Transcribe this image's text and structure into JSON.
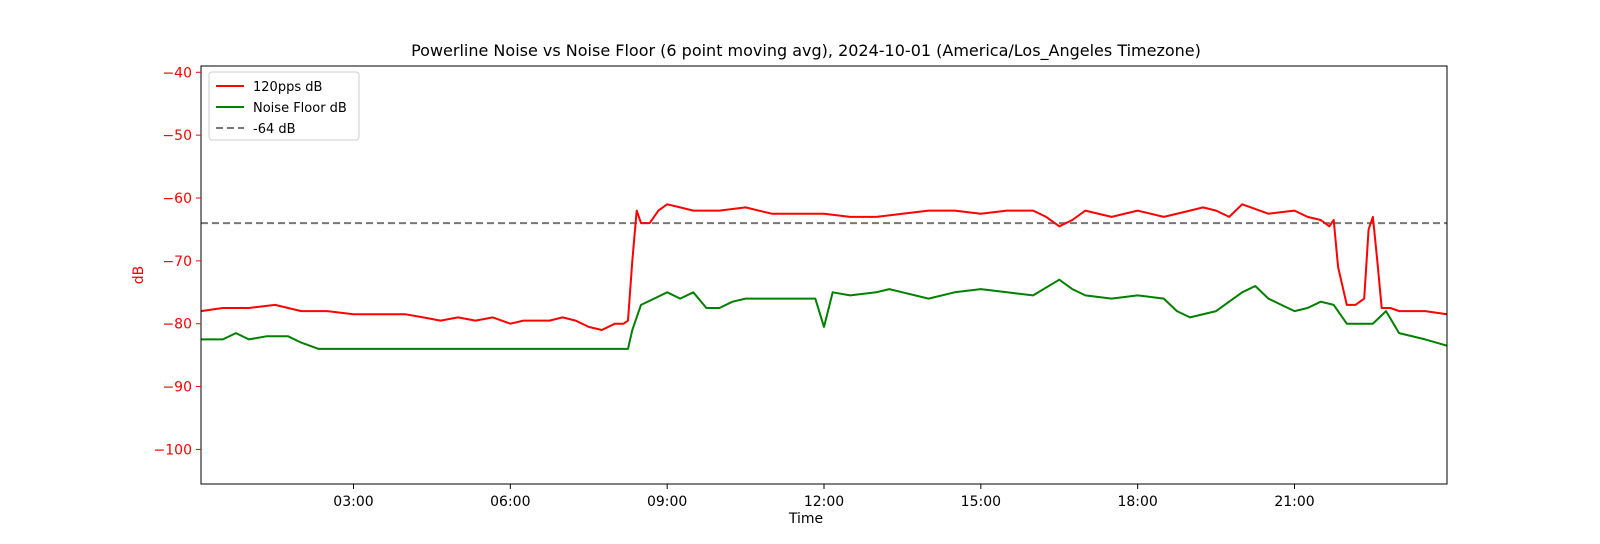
{
  "chart_data": {
    "type": "line",
    "title": "Powerline Noise vs Noise Floor (6 point moving avg), 2024-10-01 (America/Los_Angeles Timezone)",
    "xlabel": "Time",
    "ylabel": "dB",
    "xlim": [
      "00:05",
      "23:55"
    ],
    "ylim": [
      -105.5,
      -39
    ],
    "grid": false,
    "legend_position": "upper-left",
    "x_ticks": [
      "03:00",
      "06:00",
      "09:00",
      "12:00",
      "15:00",
      "18:00",
      "21:00"
    ],
    "y_ticks": [
      -40,
      -50,
      -60,
      -70,
      -80,
      -90,
      -100
    ],
    "reference_line": {
      "label": "-64 dB",
      "value": -64,
      "color": "#777777",
      "style": "dashed"
    },
    "series": [
      {
        "name": "120pps dB",
        "color": "#ff0000",
        "x": [
          "00:05",
          "00:30",
          "01:00",
          "01:30",
          "02:00",
          "02:30",
          "03:00",
          "03:30",
          "04:00",
          "04:20",
          "04:40",
          "05:00",
          "05:20",
          "05:40",
          "06:00",
          "06:15",
          "06:30",
          "06:45",
          "07:00",
          "07:15",
          "07:30",
          "07:45",
          "08:00",
          "08:10",
          "08:15",
          "08:20",
          "08:25",
          "08:30",
          "08:40",
          "08:50",
          "09:00",
          "09:15",
          "09:30",
          "10:00",
          "10:30",
          "11:00",
          "11:30",
          "12:00",
          "12:30",
          "13:00",
          "13:30",
          "14:00",
          "14:30",
          "15:00",
          "15:30",
          "16:00",
          "16:15",
          "16:30",
          "16:45",
          "17:00",
          "17:30",
          "18:00",
          "18:30",
          "19:00",
          "19:15",
          "19:30",
          "19:45",
          "20:00",
          "20:30",
          "21:00",
          "21:15",
          "21:30",
          "21:40",
          "21:45",
          "21:50",
          "22:00",
          "22:10",
          "22:20",
          "22:25",
          "22:30",
          "22:35",
          "22:40",
          "22:50",
          "23:00",
          "23:30",
          "23:55"
        ],
        "values": [
          -78,
          -77.5,
          -77.5,
          -77,
          -78,
          -78,
          -78.5,
          -78.5,
          -78.5,
          -79,
          -79.5,
          -79,
          -79.5,
          -79,
          -80,
          -79.5,
          -79.5,
          -79.5,
          -79,
          -79.5,
          -80.5,
          -81,
          -80,
          -80,
          -79.5,
          -70,
          -62,
          -64,
          -64,
          -62,
          -61,
          -61.5,
          -62,
          -62,
          -61.5,
          -62.5,
          -62.5,
          -62.5,
          -63,
          -63,
          -62.5,
          -62,
          -62,
          -62.5,
          -62,
          -62,
          -63,
          -64.5,
          -63.5,
          -62,
          -63,
          -62,
          -63,
          -62,
          -61.5,
          -62,
          -63,
          -61,
          -62.5,
          -62,
          -63,
          -63.5,
          -64.5,
          -63.5,
          -71,
          -77,
          -77,
          -76,
          -65,
          -63,
          -70,
          -77.5,
          -77.5,
          -78,
          -78,
          -78.5
        ]
      },
      {
        "name": "Noise Floor dB",
        "color": "#008000",
        "x": [
          "00:05",
          "00:30",
          "00:45",
          "01:00",
          "01:20",
          "01:45",
          "02:00",
          "02:20",
          "02:45",
          "03:00",
          "03:30",
          "04:00",
          "04:30",
          "05:00",
          "05:30",
          "06:00",
          "06:30",
          "07:00",
          "07:30",
          "08:00",
          "08:15",
          "08:20",
          "08:30",
          "08:45",
          "09:00",
          "09:15",
          "09:30",
          "09:45",
          "10:00",
          "10:15",
          "10:30",
          "10:45",
          "11:00",
          "11:30",
          "11:50",
          "12:00",
          "12:10",
          "12:30",
          "13:00",
          "13:15",
          "13:30",
          "14:00",
          "14:30",
          "15:00",
          "15:30",
          "16:00",
          "16:30",
          "16:45",
          "17:00",
          "17:30",
          "18:00",
          "18:30",
          "18:45",
          "19:00",
          "19:30",
          "20:00",
          "20:15",
          "20:30",
          "20:45",
          "21:00",
          "21:15",
          "21:30",
          "21:45",
          "22:00",
          "22:15",
          "22:30",
          "22:45",
          "23:00",
          "23:30",
          "23:55"
        ],
        "values": [
          -82.5,
          -82.5,
          -81.5,
          -82.5,
          -82,
          -82,
          -83,
          -84,
          -84,
          -84,
          -84,
          -84,
          -84,
          -84,
          -84,
          -84,
          -84,
          -84,
          -84,
          -84,
          -84,
          -81,
          -77,
          -76,
          -75,
          -76,
          -75,
          -77.5,
          -77.5,
          -76.5,
          -76,
          -76,
          -76,
          -76,
          -76,
          -80.5,
          -75,
          -75.5,
          -75,
          -74.5,
          -75,
          -76,
          -75,
          -74.5,
          -75,
          -75.5,
          -73,
          -74.5,
          -75.5,
          -76,
          -75.5,
          -76,
          -78,
          -79,
          -78,
          -75,
          -74,
          -76,
          -77,
          -78,
          -77.5,
          -76.5,
          -77,
          -80,
          -80,
          -80,
          -78,
          -81.5,
          -82.5,
          -83.5
        ]
      }
    ]
  }
}
